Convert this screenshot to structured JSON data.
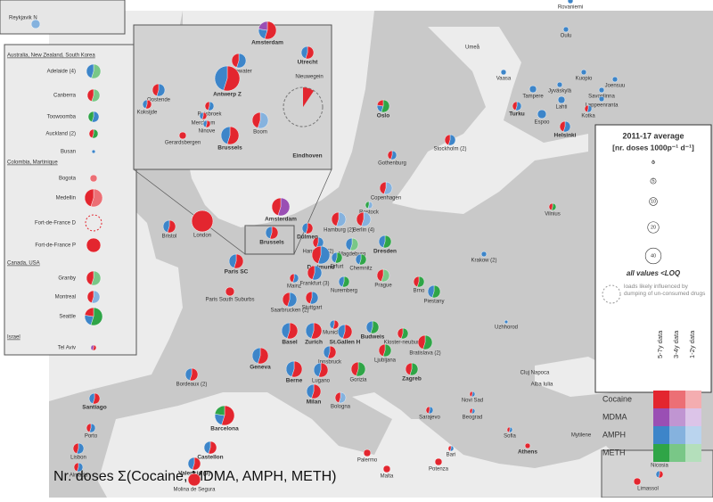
{
  "title": "Nr. doses Σ(Cocaine, MDMA, AMPH, METH)",
  "reykjavik": "Reykjavik N",
  "international": [
    {
      "heading": "Australia, New Zealand, South Korea",
      "cities": [
        "Adelaide (4)",
        "Canberra",
        "Toowoomba",
        "Auckland (2)",
        "Busan"
      ]
    },
    {
      "heading": "Colombia, Martinique",
      "cities": [
        "Bogota",
        "Medellin",
        "Fort-de-France D",
        "Fort-de-France P"
      ]
    },
    {
      "heading": "Canada, USA",
      "cities": [
        "Granby",
        "Montreal",
        "Seattle"
      ]
    },
    {
      "heading": "Israel",
      "cities": [
        "Tel Aviv"
      ]
    }
  ],
  "inset_cities": [
    "Amsterdam",
    "Utrecht",
    "Oudewater",
    "Nieuwegein",
    "Oostende",
    "Koksijde",
    "Antwerp Z",
    "Ruisbroek",
    "Merchtem",
    "Ninove",
    "Boom",
    "Gerardsbergen",
    "Brussels",
    "Eindhoven"
  ],
  "cities": [
    "Rovaniemi",
    "Oulu",
    "Umeå",
    "Vaasa",
    "Kuopio",
    "Joensuu",
    "Tampere",
    "Jyväskylä",
    "Savonlinna",
    "Lahti",
    "Lappeenranta",
    "Turku",
    "Espoo",
    "Kotka",
    "Helsinki",
    "Oslo",
    "Stockholm (2)",
    "Gothenburg",
    "Copenhagen",
    "Hamburg (2)",
    "Rostock",
    "Berlin (4)",
    "Amsterdam",
    "Brussels",
    "Hannover (2)",
    "Magdeburg",
    "Dülmen",
    "Dortmund",
    "Dresden",
    "Erfurt",
    "Chemnitz",
    "Frankfurt (3)",
    "Mainz",
    "Prague",
    "Bristol",
    "London",
    "Saarbrucken (2)",
    "Stuttgart",
    "Nuremberg",
    "Brno",
    "Piestany",
    "Krakow (2)",
    "Vilnius",
    "Paris SC",
    "Paris South Suburbs",
    "Munich G",
    "Basel",
    "Zurich",
    "St.Gallen H",
    "Budweis",
    "Kloster-neuburg",
    "Bratislava (2)",
    "Uzhhorod",
    "Innsbruck",
    "Geneva",
    "Berne",
    "Lugano",
    "Milan",
    "Ljubljana",
    "Gorizia",
    "Zagreb",
    "Cluj Napoca",
    "Alba Iulia",
    "Bordeaux (2)",
    "Bologna",
    "Novi Sad",
    "Beograd",
    "Sarajevo",
    "Sofia",
    "Santiago",
    "Porto",
    "Barcelona",
    "Castellon",
    "Valencia (3)",
    "Molina de Segura",
    "Lisbon",
    "Almada",
    "Bari",
    "Potenza",
    "Palermo",
    "Malta",
    "Athens",
    "Mytilene"
  ],
  "cyprus": [
    "Nicosia",
    "Limassol"
  ],
  "legend": {
    "title": "2011-17 average",
    "unit": "[nr. doses 1000p⁻¹ d⁻¹]",
    "sizes": [
      1,
      5,
      10,
      20,
      40
    ],
    "loq": "all values <LOQ",
    "dumping": "loads likely influenced by dumping of un-consumed drugs",
    "columns": [
      "5-7y data",
      "3-4y data",
      "1-2y data"
    ],
    "drugs": [
      {
        "name": "Cocaine",
        "colors": [
          "#e3262f",
          "#ec6f75",
          "#f4adb0"
        ]
      },
      {
        "name": "MDMA",
        "colors": [
          "#9a4fb4",
          "#c095d2",
          "#dcc4e8"
        ]
      },
      {
        "name": "AMPH",
        "colors": [
          "#3d85c9",
          "#85b2de",
          "#bad4ee"
        ]
      },
      {
        "name": "METH",
        "colors": [
          "#2fa547",
          "#79c787",
          "#b4dfbb"
        ]
      }
    ]
  }
}
